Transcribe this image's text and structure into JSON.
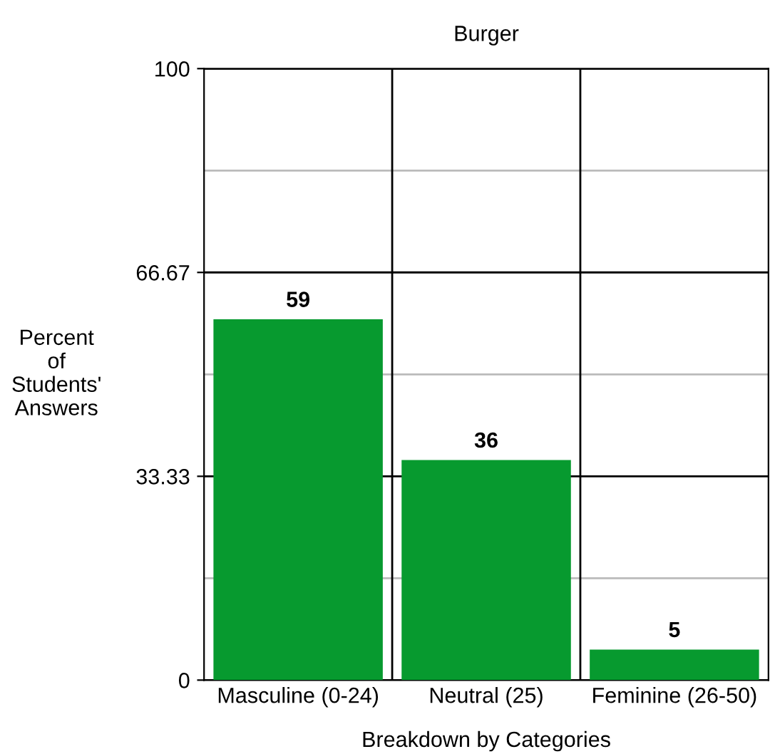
{
  "chart_data": {
    "type": "bar",
    "title": "Burger",
    "xlabel": "Breakdown by Categories",
    "ylabel": "Percent\nof\nStudents'\nAnswers",
    "categories": [
      "Masculine (0-24)",
      "Neutral (25)",
      "Feminine (26-50)"
    ],
    "values": [
      59,
      36,
      5
    ],
    "color": "#079a2f",
    "ylim": [
      0,
      100
    ],
    "yticks": [
      0,
      {
        "value": 16.67,
        "label": null
      },
      {
        "value": 33.33,
        "label": "33.33"
      },
      {
        "value": 50,
        "label": null
      },
      {
        "value": 66.67,
        "label": "66.67"
      },
      {
        "value": 83.33,
        "label": null
      },
      100
    ],
    "grid": true,
    "data_labels": true
  }
}
